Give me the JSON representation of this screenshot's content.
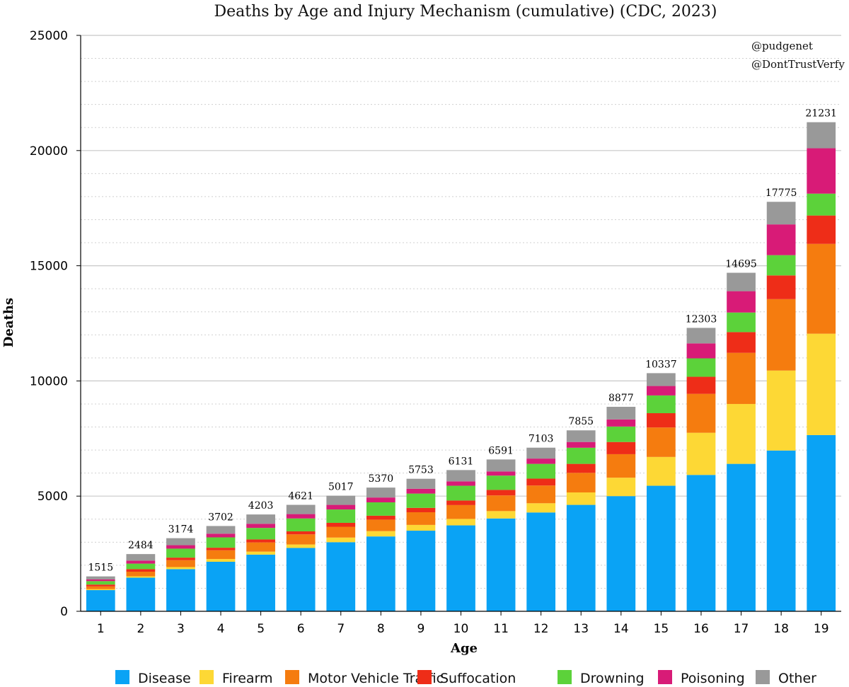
{
  "chart_data": {
    "type": "bar",
    "stacked": true,
    "title": "Deaths by Age and Injury Mechanism (cumulative) (CDC, 2023)",
    "xlabel": "Age",
    "ylabel": "Deaths",
    "ylim": [
      0,
      25000
    ],
    "yticks": [
      0,
      5000,
      10000,
      15000,
      20000,
      25000
    ],
    "grid": true,
    "legend_position": "bottom",
    "credits": [
      "@pudgenet",
      "@DontTrustVerfy"
    ],
    "categories": [
      "1",
      "2",
      "3",
      "4",
      "5",
      "6",
      "7",
      "8",
      "9",
      "10",
      "11",
      "12",
      "13",
      "14",
      "15",
      "16",
      "17",
      "18",
      "19"
    ],
    "totals": [
      1515,
      2484,
      3174,
      3702,
      4203,
      4621,
      5017,
      5370,
      5753,
      6131,
      6591,
      7103,
      7855,
      8877,
      10337,
      12303,
      14695,
      17775,
      21231
    ],
    "series": [
      {
        "name": "Disease",
        "color": "#0aa3f5",
        "values": [
          920,
          1460,
          1830,
          2150,
          2460,
          2750,
          3000,
          3250,
          3500,
          3730,
          4030,
          4290,
          4620,
          5000,
          5450,
          5920,
          6400,
          6980,
          7650
        ]
      },
      {
        "name": "Firearm",
        "color": "#fdd835",
        "values": [
          40,
          60,
          90,
          120,
          130,
          150,
          200,
          230,
          250,
          280,
          320,
          400,
          540,
          800,
          1250,
          1830,
          2600,
          3470,
          4400
        ]
      },
      {
        "name": "Motor Vehicle Traffic",
        "color": "#f57c0f",
        "values": [
          120,
          200,
          300,
          380,
          400,
          440,
          470,
          500,
          550,
          600,
          680,
          770,
          850,
          1020,
          1280,
          1690,
          2220,
          3100,
          3900
        ]
      },
      {
        "name": "Suffocation",
        "color": "#ee2d18",
        "values": [
          80,
          110,
          110,
          110,
          130,
          130,
          170,
          170,
          190,
          200,
          240,
          300,
          390,
          530,
          620,
          740,
          900,
          1030,
          1230
        ]
      },
      {
        "name": "Drowning",
        "color": "#5cd23a",
        "values": [
          150,
          240,
          390,
          450,
          500,
          560,
          580,
          580,
          620,
          640,
          620,
          640,
          700,
          670,
          770,
          800,
          850,
          880,
          950
        ]
      },
      {
        "name": "Poisoning",
        "color": "#d81b77",
        "values": [
          75,
          130,
          150,
          160,
          180,
          190,
          200,
          210,
          210,
          190,
          180,
          230,
          250,
          310,
          410,
          650,
          925,
          1335,
          1970
        ]
      },
      {
        "name": "Other",
        "color": "#999999",
        "values": [
          130,
          284,
          304,
          332,
          403,
          401,
          397,
          430,
          433,
          491,
          521,
          473,
          505,
          547,
          557,
          673,
          800,
          980,
          1131
        ]
      }
    ]
  }
}
